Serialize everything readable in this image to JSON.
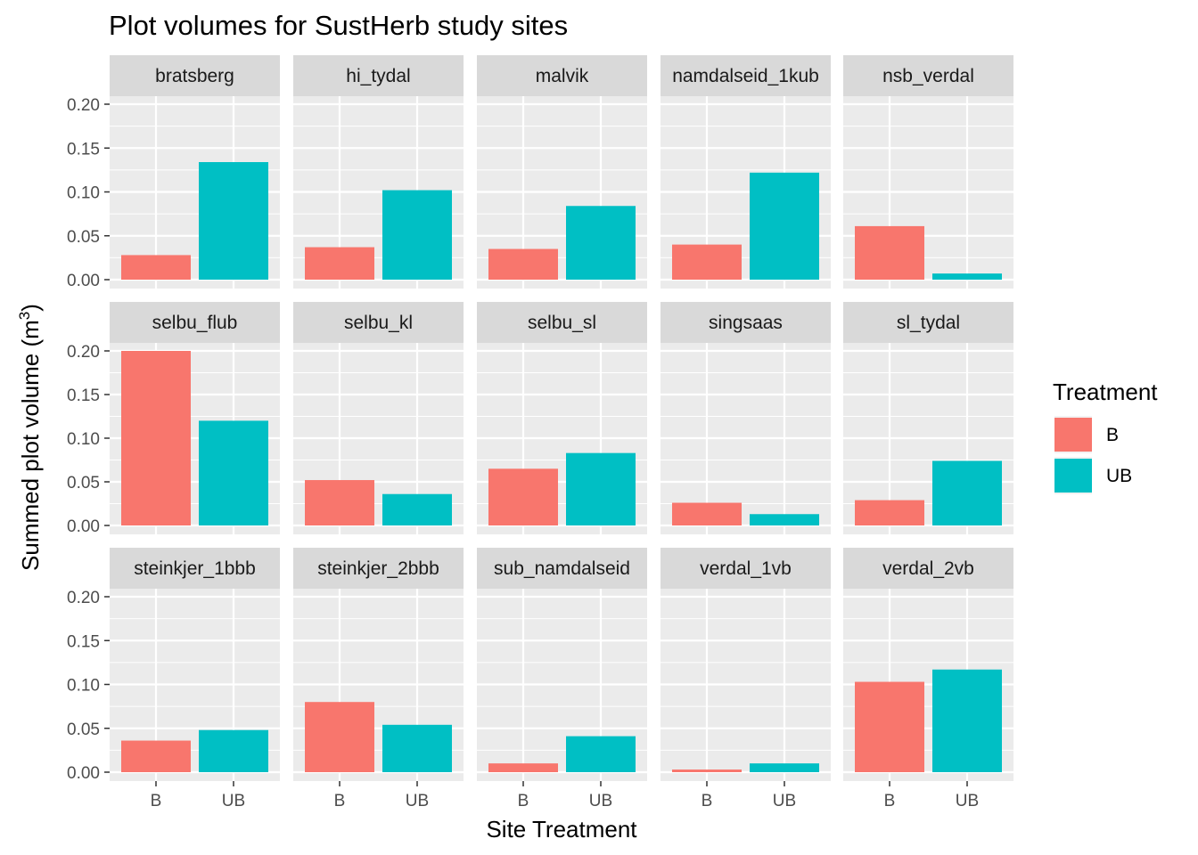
{
  "chart_data": {
    "type": "bar",
    "title": "Plot volumes for SustHerb study sites",
    "xlabel": "Site Treatment",
    "ylabel": "Summed plot volume (m",
    "ylabel_superscript": "3",
    "ylabel_suffix": ")",
    "ylim": [
      0,
      0.2
    ],
    "yticks": [
      "0.00",
      "0.05",
      "0.10",
      "0.15",
      "0.20"
    ],
    "categories": [
      "B",
      "UB"
    ],
    "legend": {
      "title": "Treatment",
      "position": "right",
      "items": [
        {
          "label": "B",
          "color": "#F8766D"
        },
        {
          "label": "UB",
          "color": "#00BFC4"
        }
      ]
    },
    "facets": [
      {
        "name": "bratsberg",
        "values": [
          0.028,
          0.134
        ]
      },
      {
        "name": "hi_tydal",
        "values": [
          0.037,
          0.102
        ]
      },
      {
        "name": "malvik",
        "values": [
          0.035,
          0.084
        ]
      },
      {
        "name": "namdalseid_1kub",
        "values": [
          0.04,
          0.122
        ]
      },
      {
        "name": "nsb_verdal",
        "values": [
          0.061,
          0.007
        ]
      },
      {
        "name": "selbu_flub",
        "values": [
          0.2,
          0.12
        ]
      },
      {
        "name": "selbu_kl",
        "values": [
          0.052,
          0.036
        ]
      },
      {
        "name": "selbu_sl",
        "values": [
          0.065,
          0.083
        ]
      },
      {
        "name": "singsaas",
        "values": [
          0.026,
          0.013
        ]
      },
      {
        "name": "sl_tydal",
        "values": [
          0.029,
          0.074
        ]
      },
      {
        "name": "steinkjer_1bbb",
        "values": [
          0.036,
          0.048
        ]
      },
      {
        "name": "steinkjer_2bbb",
        "values": [
          0.08,
          0.054
        ]
      },
      {
        "name": "sub_namdalseid",
        "values": [
          0.01,
          0.041
        ]
      },
      {
        "name": "verdal_1vb",
        "values": [
          0.003,
          0.01
        ]
      },
      {
        "name": "verdal_2vb",
        "values": [
          0.103,
          0.117
        ]
      }
    ],
    "grid": true,
    "colors": {
      "B": "#F8766D",
      "UB": "#00BFC4",
      "panel": "#EBEBEB",
      "strip": "#D9D9D9"
    }
  }
}
